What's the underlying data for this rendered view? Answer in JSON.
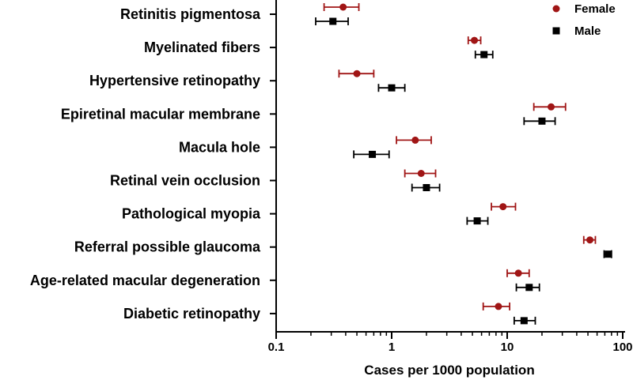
{
  "chart_data": {
    "type": "scatter",
    "title": "",
    "xlabel": "Cases per 1000 population",
    "ylabel": "",
    "xscale": "log",
    "xlim": [
      0.1,
      100
    ],
    "xticks": [
      0.1,
      1,
      10,
      100
    ],
    "xtick_labels": [
      "0.1",
      "1",
      "10",
      "100"
    ],
    "grid": false,
    "legend_position": "top-right",
    "categories": [
      "Retinitis pigmentosa",
      "Myelinated fibers",
      "Hypertensive retinopathy",
      "Epiretinal macular membrane",
      "Macula hole",
      "Retinal vein occlusion",
      "Pathological myopia",
      "Referral possible glaucoma",
      "Age-related macular degeneration",
      "Diabetic retinopathy"
    ],
    "series": [
      {
        "name": "Female",
        "color": "#a01515",
        "marker": "circle",
        "values": [
          0.38,
          5.2,
          0.5,
          24,
          1.6,
          1.8,
          9.2,
          52,
          12.5,
          8.4
        ],
        "lower": [
          0.26,
          4.6,
          0.35,
          17,
          1.1,
          1.3,
          7.3,
          46,
          10,
          6.2
        ],
        "upper": [
          0.52,
          5.9,
          0.7,
          32,
          2.2,
          2.4,
          11.8,
          58,
          15.5,
          10.5
        ]
      },
      {
        "name": "Male",
        "color": "#000000",
        "marker": "square",
        "values": [
          0.31,
          6.3,
          1.0,
          20,
          0.68,
          2.0,
          5.5,
          75,
          15.5,
          14.0
        ],
        "lower": [
          0.22,
          5.3,
          0.77,
          14,
          0.47,
          1.5,
          4.5,
          69,
          12,
          11.5
        ],
        "upper": [
          0.42,
          7.5,
          1.3,
          26,
          0.95,
          2.6,
          6.8,
          80,
          19,
          17.5
        ]
      }
    ]
  }
}
